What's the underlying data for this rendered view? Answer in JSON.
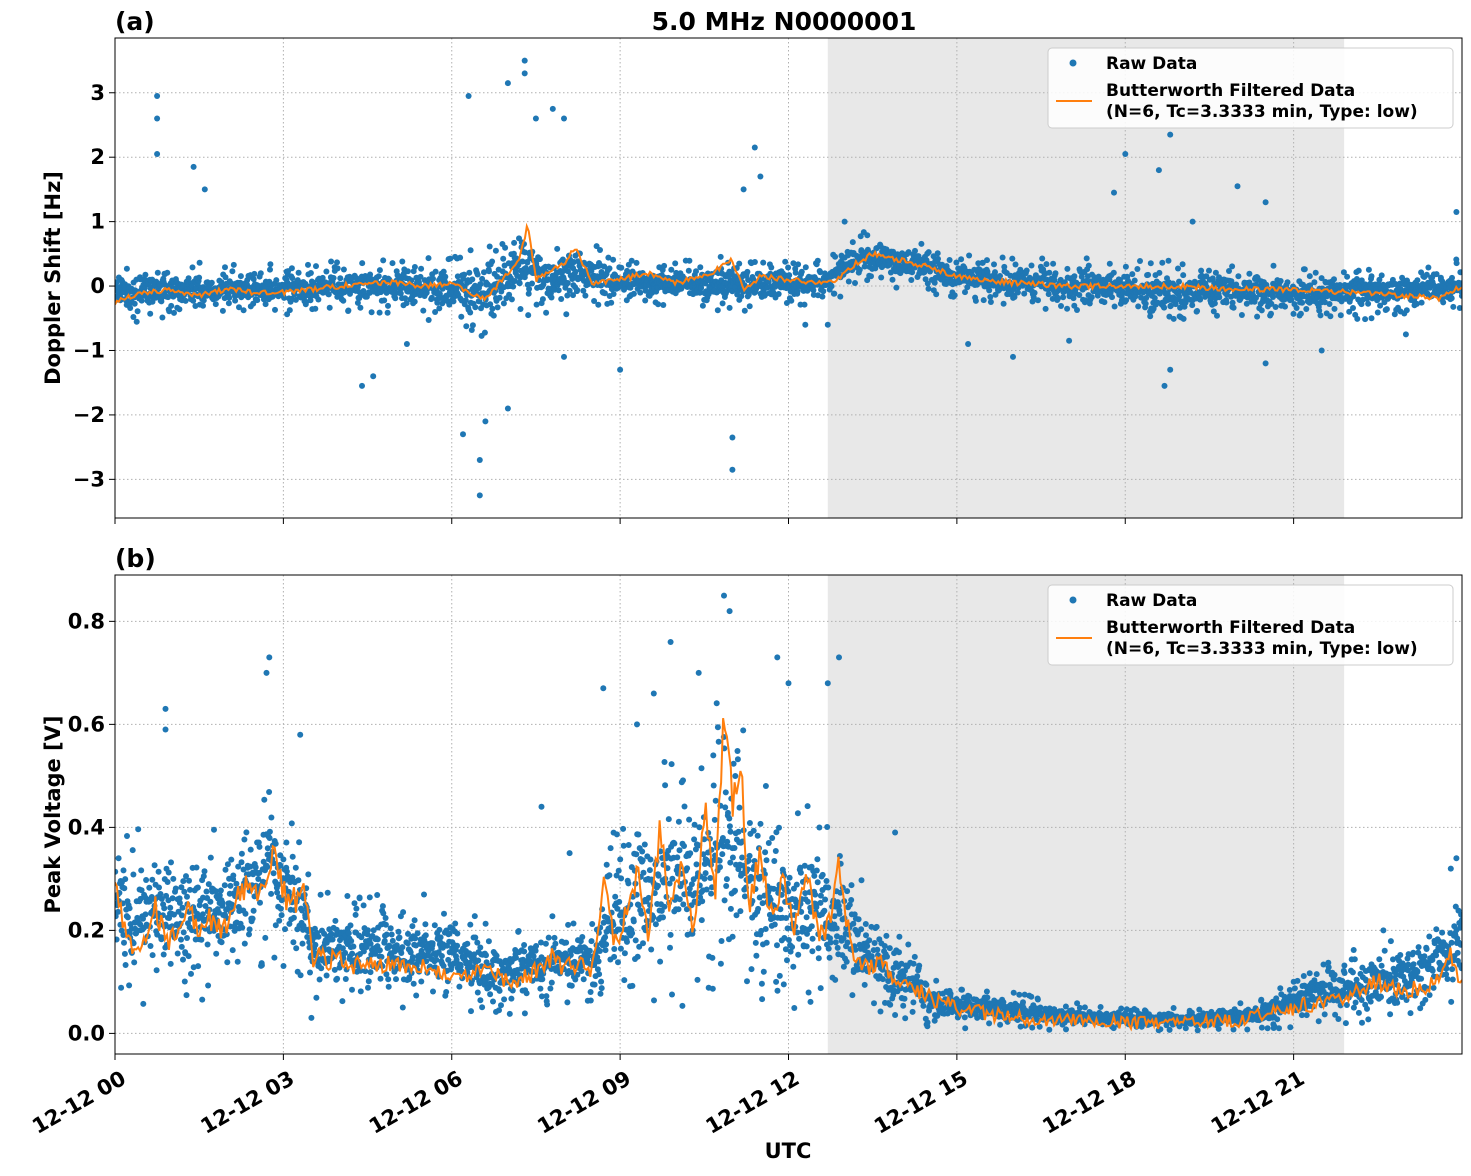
{
  "figure": {
    "title": "5.0 MHz N0000001",
    "xlabel": "UTC",
    "colors": {
      "raw": "#1f77b4",
      "filtered": "#ff7f0e",
      "shade": "#e8e8e8",
      "grid": "#b0b0b0"
    }
  },
  "legend": {
    "raw": "Raw Data",
    "filtered_line1": "Butterworth Filtered Data",
    "filtered_line2": "(N=6, Tc=3.3333 min, Type: low)"
  },
  "chart_data": [
    {
      "panel": "(a)",
      "type": "scatter",
      "ylabel": "Doppler Shift [Hz]",
      "xlim": [
        0,
        24
      ],
      "ylim": [
        -3.6,
        3.85
      ],
      "yticks": [
        -3,
        -2,
        -1,
        0,
        1,
        2,
        3
      ],
      "ytick_labels": [
        "−3",
        "−2",
        "−1",
        "0",
        "1",
        "2",
        "3"
      ],
      "shaded_span_hours": [
        12.7,
        21.9
      ],
      "xtick_hours": [
        0,
        3,
        6,
        9,
        12,
        15,
        18,
        21
      ],
      "xtick_labels": [
        "12-12 00",
        "12-12 03",
        "12-12 06",
        "12-12 09",
        "12-12 12",
        "12-12 15",
        "12-12 18",
        "12-12 21"
      ],
      "series": [
        {
          "name": "Raw Data",
          "band_hours": [
            0,
            1,
            2,
            3,
            4,
            5,
            6,
            6.5,
            7,
            7.3,
            7.7,
            8,
            8.3,
            9,
            10,
            11,
            11.3,
            12,
            12.7,
            13.2,
            14,
            15,
            16,
            17,
            18,
            19,
            20,
            21,
            22,
            23,
            24
          ],
          "band_low": [
            -0.6,
            -0.5,
            -0.45,
            -0.45,
            -0.4,
            -0.5,
            -0.6,
            -0.8,
            -0.7,
            -0.5,
            -0.6,
            -0.5,
            -0.4,
            -0.3,
            -0.3,
            -0.5,
            -0.4,
            -0.3,
            -0.3,
            0.0,
            -0.05,
            -0.2,
            -0.35,
            -0.45,
            -0.5,
            -0.55,
            -0.5,
            -0.5,
            -0.55,
            -0.5,
            -0.4
          ],
          "band_high": [
            0.35,
            0.4,
            0.35,
            0.35,
            0.4,
            0.5,
            0.5,
            0.6,
            0.9,
            1.2,
            0.7,
            0.9,
            0.8,
            0.4,
            0.4,
            0.6,
            0.45,
            0.4,
            0.4,
            0.85,
            0.8,
            0.55,
            0.45,
            0.45,
            0.4,
            0.4,
            0.4,
            0.3,
            0.3,
            0.3,
            0.45
          ],
          "outliers": [
            [
              0.75,
              2.95
            ],
            [
              0.75,
              2.6
            ],
            [
              0.75,
              2.05
            ],
            [
              1.4,
              1.85
            ],
            [
              1.6,
              1.5
            ],
            [
              4.4,
              -1.55
            ],
            [
              4.6,
              -1.4
            ],
            [
              5.2,
              -0.9
            ],
            [
              6.2,
              -2.3
            ],
            [
              6.3,
              2.95
            ],
            [
              6.5,
              -3.25
            ],
            [
              6.5,
              -2.7
            ],
            [
              6.6,
              -2.1
            ],
            [
              7.0,
              -1.9
            ],
            [
              7.0,
              3.15
            ],
            [
              7.3,
              3.5
            ],
            [
              7.3,
              3.3
            ],
            [
              7.5,
              2.6
            ],
            [
              7.8,
              2.75
            ],
            [
              8.0,
              2.6
            ],
            [
              8.0,
              -1.1
            ],
            [
              9.0,
              -1.3
            ],
            [
              11.0,
              -2.35
            ],
            [
              11.0,
              -2.85
            ],
            [
              11.2,
              1.5
            ],
            [
              11.4,
              2.15
            ],
            [
              11.5,
              1.7
            ],
            [
              12.3,
              -0.6
            ],
            [
              12.7,
              -0.6
            ],
            [
              13.0,
              1.0
            ],
            [
              15.2,
              -0.9
            ],
            [
              16.0,
              -1.1
            ],
            [
              17.0,
              -0.85
            ],
            [
              17.8,
              1.45
            ],
            [
              18.0,
              2.05
            ],
            [
              18.6,
              1.8
            ],
            [
              18.8,
              2.35
            ],
            [
              18.7,
              -1.55
            ],
            [
              18.8,
              -1.3
            ],
            [
              19.2,
              1.0
            ],
            [
              20.0,
              1.55
            ],
            [
              20.5,
              1.3
            ],
            [
              20.5,
              -1.2
            ],
            [
              21.5,
              -1.0
            ],
            [
              23.0,
              -0.75
            ],
            [
              23.9,
              1.15
            ]
          ]
        },
        {
          "name": "Butterworth Filtered Data",
          "hours": [
            0,
            0.5,
            1,
            1.5,
            2,
            2.5,
            3,
            3.5,
            4,
            4.5,
            5,
            5.5,
            6,
            6.3,
            6.6,
            7,
            7.2,
            7.35,
            7.5,
            7.8,
            8.0,
            8.2,
            8.5,
            9,
            9.5,
            10,
            10.5,
            11,
            11.2,
            11.5,
            12,
            12.5,
            12.8,
            13.2,
            13.5,
            14,
            14.5,
            15,
            16,
            17,
            18,
            19,
            20,
            21,
            22,
            23,
            23.6,
            24
          ],
          "values": [
            -0.25,
            -0.1,
            -0.05,
            -0.15,
            -0.05,
            -0.1,
            -0.1,
            -0.05,
            0.0,
            0.05,
            0.05,
            0.0,
            0.05,
            -0.1,
            -0.2,
            0.2,
            0.4,
            0.95,
            0.1,
            0.25,
            0.35,
            0.6,
            0.05,
            0.1,
            0.2,
            0.05,
            0.15,
            0.4,
            -0.05,
            0.15,
            0.1,
            0.05,
            0.05,
            0.35,
            0.5,
            0.4,
            0.3,
            0.15,
            0.05,
            0.0,
            0.0,
            0.0,
            -0.05,
            -0.05,
            -0.1,
            -0.15,
            -0.2,
            0.0
          ]
        }
      ]
    },
    {
      "panel": "(b)",
      "type": "scatter",
      "ylabel": "Peak Voltage [V]",
      "xlim": [
        0,
        24
      ],
      "ylim": [
        -0.04,
        0.89
      ],
      "yticks": [
        0.0,
        0.2,
        0.4,
        0.6,
        0.8
      ],
      "ytick_labels": [
        "0.0",
        "0.2",
        "0.4",
        "0.6",
        "0.8"
      ],
      "shaded_span_hours": [
        12.7,
        21.9
      ],
      "xtick_hours": [
        0,
        3,
        6,
        9,
        12,
        15,
        18,
        21
      ],
      "xtick_labels": [
        "12-12 00",
        "12-12 03",
        "12-12 06",
        "12-12 09",
        "12-12 12",
        "12-12 15",
        "12-12 18",
        "12-12 21"
      ],
      "series": [
        {
          "name": "Raw Data",
          "band_hours": [
            0,
            0.5,
            1,
            1.5,
            2,
            2.5,
            2.8,
            3.3,
            3.5,
            4,
            5,
            6,
            6.5,
            7,
            8,
            8.5,
            9,
            9.5,
            10,
            10.5,
            10.8,
            11.2,
            11.5,
            12,
            12.5,
            13,
            13.5,
            14,
            14.5,
            15,
            16,
            17,
            18,
            19,
            20,
            20.5,
            21,
            22,
            22.5,
            23,
            23.5,
            24
          ],
          "band_low": [
            0.06,
            0.05,
            0.06,
            0.05,
            0.07,
            0.09,
            0.1,
            0.08,
            0.05,
            0.05,
            0.05,
            0.04,
            0.04,
            0.03,
            0.04,
            0.04,
            0.05,
            0.05,
            0.05,
            0.06,
            0.08,
            0.06,
            0.06,
            0.05,
            0.04,
            0.03,
            0.03,
            0.02,
            0.01,
            0.01,
            0.01,
            0.005,
            0.005,
            0.005,
            0.005,
            0.005,
            0.01,
            0.01,
            0.02,
            0.03,
            0.04,
            0.06
          ],
          "band_high": [
            0.45,
            0.4,
            0.38,
            0.4,
            0.42,
            0.48,
            0.55,
            0.4,
            0.28,
            0.28,
            0.27,
            0.27,
            0.22,
            0.2,
            0.25,
            0.22,
            0.45,
            0.5,
            0.55,
            0.55,
            0.75,
            0.6,
            0.5,
            0.45,
            0.45,
            0.35,
            0.27,
            0.2,
            0.12,
            0.1,
            0.08,
            0.06,
            0.05,
            0.05,
            0.06,
            0.07,
            0.12,
            0.16,
            0.18,
            0.2,
            0.22,
            0.3
          ],
          "outliers": [
            [
              0.9,
              0.63
            ],
            [
              0.9,
              0.59
            ],
            [
              2.75,
              0.73
            ],
            [
              2.7,
              0.7
            ],
            [
              3.3,
              0.58
            ],
            [
              3.5,
              0.03
            ],
            [
              7.6,
              0.44
            ],
            [
              8.1,
              0.35
            ],
            [
              8.7,
              0.67
            ],
            [
              9.3,
              0.6
            ],
            [
              9.6,
              0.66
            ],
            [
              9.9,
              0.76
            ],
            [
              10.4,
              0.7
            ],
            [
              10.85,
              0.85
            ],
            [
              10.95,
              0.82
            ],
            [
              11.8,
              0.73
            ],
            [
              12.0,
              0.68
            ],
            [
              12.7,
              0.68
            ],
            [
              12.9,
              0.73
            ],
            [
              13.9,
              0.39
            ],
            [
              23.9,
              0.34
            ],
            [
              23.8,
              0.32
            ],
            [
              22.6,
              0.2
            ]
          ]
        },
        {
          "name": "Butterworth Filtered Data",
          "hours": [
            0,
            0.15,
            0.3,
            0.5,
            0.7,
            0.9,
            1.1,
            1.3,
            1.5,
            1.7,
            1.9,
            2.1,
            2.3,
            2.5,
            2.7,
            2.8,
            3.0,
            3.2,
            3.4,
            3.5,
            4.0,
            4.5,
            5.0,
            5.5,
            6.0,
            6.3,
            6.6,
            7.0,
            7.5,
            7.8,
            8.0,
            8.3,
            8.5,
            8.7,
            8.9,
            9.1,
            9.3,
            9.5,
            9.7,
            9.9,
            10.1,
            10.3,
            10.5,
            10.7,
            10.85,
            11.0,
            11.15,
            11.3,
            11.5,
            11.7,
            11.9,
            12.1,
            12.3,
            12.5,
            12.7,
            12.9,
            13.1,
            13.3,
            13.6,
            14.0,
            14.5,
            15.0,
            15.5,
            16.0,
            17.0,
            18.0,
            19.0,
            20.0,
            20.5,
            21.0,
            21.5,
            22.0,
            22.5,
            23.0,
            23.5,
            23.8,
            24.0
          ],
          "values": [
            0.29,
            0.2,
            0.17,
            0.16,
            0.25,
            0.18,
            0.19,
            0.24,
            0.2,
            0.22,
            0.2,
            0.24,
            0.28,
            0.27,
            0.29,
            0.37,
            0.27,
            0.26,
            0.27,
            0.15,
            0.14,
            0.13,
            0.14,
            0.13,
            0.12,
            0.11,
            0.14,
            0.1,
            0.12,
            0.15,
            0.13,
            0.14,
            0.12,
            0.3,
            0.17,
            0.23,
            0.32,
            0.18,
            0.4,
            0.24,
            0.34,
            0.18,
            0.44,
            0.28,
            0.61,
            0.45,
            0.52,
            0.25,
            0.35,
            0.22,
            0.3,
            0.2,
            0.32,
            0.2,
            0.2,
            0.32,
            0.18,
            0.12,
            0.14,
            0.1,
            0.07,
            0.05,
            0.04,
            0.03,
            0.025,
            0.02,
            0.02,
            0.025,
            0.04,
            0.05,
            0.06,
            0.07,
            0.1,
            0.08,
            0.1,
            0.15,
            0.1
          ]
        }
      ]
    }
  ]
}
